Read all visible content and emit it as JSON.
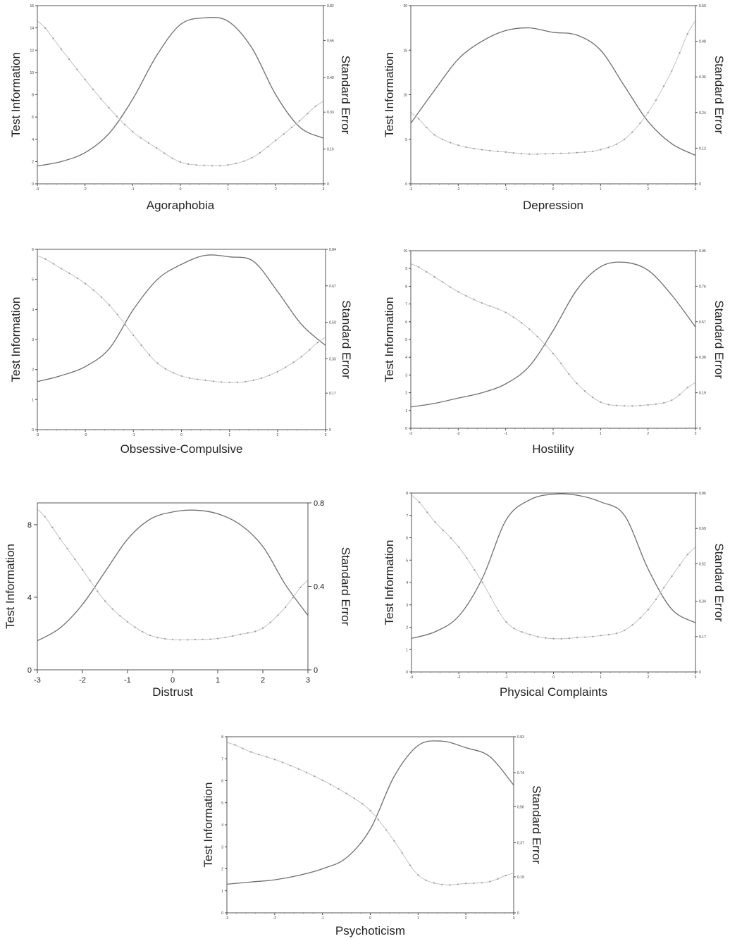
{
  "figure": {
    "left_axis_title": "Test Information",
    "right_axis_title": "Standard Error"
  },
  "chart_data": [
    {
      "type": "line",
      "title": "Agoraphobia",
      "xlabel": "Agoraphobia",
      "ylabel": "Test Information",
      "y2label": "Standard Error",
      "xlim": [
        -3,
        3
      ],
      "ylim": [
        0,
        16
      ],
      "y2lim": [
        0,
        0.82
      ],
      "x_ticks": [
        -3,
        -2,
        -1,
        0,
        1,
        2,
        3
      ],
      "y_ticks": [
        0,
        2,
        4,
        6,
        8,
        10,
        12,
        14,
        16
      ],
      "y2_ticks": [
        0,
        0.16,
        0.33,
        0.49,
        0.66,
        0.82
      ],
      "x_tick_labels": [
        "-3",
        "-2",
        "-1",
        "0",
        "1",
        "2",
        "3"
      ],
      "y_tick_labels": [
        "0",
        "2",
        "4",
        "6",
        "8",
        "10",
        "12",
        "14",
        "16"
      ],
      "y2_tick_labels": [
        "0",
        "0.16",
        "0.33",
        "0.49",
        "0.66",
        "0.82"
      ],
      "series": [
        {
          "axis": "left",
          "style": "solid",
          "x": [
            -3,
            -2.5,
            -2,
            -1.5,
            -1,
            -0.5,
            0,
            0.5,
            1,
            1.5,
            2,
            2.5,
            3
          ],
          "values": [
            1.6,
            2.0,
            2.8,
            4.5,
            7.6,
            11.5,
            14.3,
            14.9,
            14.6,
            12.2,
            8.0,
            5.1,
            4.1
          ]
        },
        {
          "axis": "right",
          "style": "dotted",
          "x": [
            -3,
            -2.5,
            -2,
            -1.5,
            -1,
            -0.5,
            0,
            0.5,
            1,
            1.5,
            2,
            2.5,
            3
          ],
          "values": [
            0.75,
            0.62,
            0.48,
            0.35,
            0.24,
            0.165,
            0.1,
            0.085,
            0.087,
            0.12,
            0.2,
            0.29,
            0.38
          ]
        }
      ]
    },
    {
      "type": "line",
      "title": "Depression",
      "xlabel": "Depression",
      "ylabel": "Test Information",
      "y2label": "Standard Error",
      "xlim": [
        -3,
        3
      ],
      "ylim": [
        0,
        20
      ],
      "y2lim": [
        0,
        0.6
      ],
      "x_ticks": [
        -3,
        -2,
        -1,
        0,
        1,
        2,
        3
      ],
      "y_ticks": [
        0,
        5,
        10,
        15,
        20
      ],
      "y2_ticks": [
        0,
        0.12,
        0.24,
        0.36,
        0.48,
        0.6
      ],
      "x_tick_labels": [
        "-3",
        "-2",
        "-1",
        "0",
        "1",
        "2",
        "3"
      ],
      "y_tick_labels": [
        "0",
        "5",
        "10",
        "15",
        "20"
      ],
      "y2_tick_labels": [
        "0",
        "0.12",
        "0.24",
        "0.36",
        "0.48",
        "0.60"
      ],
      "series": [
        {
          "axis": "left",
          "style": "solid",
          "x": [
            -3,
            -2.5,
            -2,
            -1.5,
            -1,
            -0.5,
            0,
            0.5,
            1,
            1.5,
            2,
            2.5,
            3
          ],
          "values": [
            6.8,
            10.5,
            14.0,
            16.0,
            17.2,
            17.5,
            17.0,
            16.7,
            15.0,
            11.0,
            7.0,
            4.5,
            3.2
          ]
        },
        {
          "axis": "right",
          "style": "dotted",
          "x": [
            -3,
            -2.5,
            -2,
            -1.5,
            -1,
            -0.5,
            0,
            0.5,
            1,
            1.5,
            2,
            2.5,
            3
          ],
          "values": [
            0.24,
            0.165,
            0.13,
            0.115,
            0.107,
            0.1,
            0.102,
            0.105,
            0.115,
            0.15,
            0.24,
            0.38,
            0.55
          ]
        }
      ]
    },
    {
      "type": "line",
      "title": "Obsessive-Compulsive",
      "xlabel": "Obsessive-Compulsive",
      "ylabel": "Test Information",
      "y2label": "Standard Error",
      "xlim": [
        -3,
        3
      ],
      "ylim": [
        0,
        6
      ],
      "y2lim": [
        0,
        0.84
      ],
      "x_ticks": [
        -3,
        -2,
        -1,
        0,
        1,
        2,
        3
      ],
      "y_ticks": [
        0,
        1,
        2,
        3,
        4,
        5,
        6
      ],
      "y2_ticks": [
        0,
        0.17,
        0.33,
        0.5,
        0.67,
        0.84
      ],
      "x_tick_labels": [
        "-3",
        "-2",
        "-1",
        "0",
        "1",
        "2",
        "3"
      ],
      "y_tick_labels": [
        "0",
        "1",
        "2",
        "3",
        "4",
        "5",
        "6"
      ],
      "y2_tick_labels": [
        "0",
        "0.17",
        "0.33",
        "0.50",
        "0.67",
        "0.84"
      ],
      "series": [
        {
          "axis": "left",
          "style": "solid",
          "x": [
            -3,
            -2.5,
            -2,
            -1.5,
            -1,
            -0.5,
            0,
            0.5,
            1,
            1.5,
            2,
            2.5,
            3
          ],
          "values": [
            1.6,
            1.8,
            2.1,
            2.7,
            4.0,
            5.0,
            5.5,
            5.8,
            5.75,
            5.6,
            4.6,
            3.5,
            2.8
          ]
        },
        {
          "axis": "right",
          "style": "dotted",
          "x": [
            -3,
            -2.5,
            -2,
            -1.5,
            -1,
            -0.5,
            0,
            0.5,
            1,
            1.5,
            2,
            2.5,
            3
          ],
          "values": [
            0.81,
            0.75,
            0.68,
            0.58,
            0.44,
            0.31,
            0.25,
            0.23,
            0.22,
            0.23,
            0.27,
            0.34,
            0.43
          ]
        }
      ]
    },
    {
      "type": "line",
      "title": "Hostility",
      "xlabel": "Hostility",
      "ylabel": "Test Information",
      "y2label": "Standard Error",
      "xlim": [
        -3,
        3
      ],
      "ylim": [
        0,
        10
      ],
      "y2lim": [
        0,
        0.95
      ],
      "x_ticks": [
        -3,
        -2,
        -1,
        0,
        1,
        2,
        3
      ],
      "y_ticks": [
        0,
        1,
        2,
        3,
        4,
        5,
        6,
        7,
        8,
        9,
        10
      ],
      "y2_ticks": [
        0,
        0.19,
        0.38,
        0.57,
        0.76,
        0.95
      ],
      "x_tick_labels": [
        "-3",
        "-2",
        "-1",
        "0",
        "1",
        "2",
        "3"
      ],
      "y_tick_labels": [
        "0",
        "1",
        "2",
        "3",
        "4",
        "5",
        "6",
        "7",
        "8",
        "9",
        "10"
      ],
      "y2_tick_labels": [
        "0",
        "0.19",
        "0.38",
        "0.57",
        "0.76",
        "0.95"
      ],
      "series": [
        {
          "axis": "left",
          "style": "solid",
          "x": [
            -3,
            -2.5,
            -2,
            -1.5,
            -1,
            -0.5,
            0,
            0.5,
            1,
            1.5,
            2,
            2.5,
            3
          ],
          "values": [
            1.2,
            1.4,
            1.7,
            2.0,
            2.5,
            3.5,
            5.5,
            7.8,
            9.1,
            9.35,
            8.9,
            7.5,
            5.7
          ]
        },
        {
          "axis": "right",
          "style": "dotted",
          "x": [
            -3,
            -2.5,
            -2,
            -1.5,
            -1,
            -0.5,
            0,
            0.5,
            1,
            1.5,
            2,
            2.5,
            3
          ],
          "values": [
            0.88,
            0.81,
            0.73,
            0.67,
            0.62,
            0.53,
            0.4,
            0.24,
            0.14,
            0.12,
            0.125,
            0.15,
            0.245
          ]
        }
      ]
    },
    {
      "type": "line",
      "title": "Distrust",
      "xlabel": "Distrust",
      "ylabel": "Test Information",
      "y2label": "Standard Error",
      "xlim": [
        -3,
        3
      ],
      "ylim": [
        0,
        9.2
      ],
      "y2lim": [
        0,
        0.8
      ],
      "x_ticks": [
        -3,
        -2,
        -1,
        0,
        1,
        2,
        3
      ],
      "y_ticks": [
        0,
        4,
        8
      ],
      "y2_ticks": [
        0,
        0.4,
        0.8
      ],
      "x_tick_labels": [
        "-3",
        "-2",
        "-1",
        "0",
        "1",
        "2",
        "3"
      ],
      "y_tick_labels": [
        "0",
        "4",
        "8"
      ],
      "y2_tick_labels": [
        "0",
        "0.4",
        "0.8"
      ],
      "series": [
        {
          "axis": "left",
          "style": "solid",
          "x": [
            -3,
            -2.5,
            -2,
            -1.5,
            -1,
            -0.5,
            0,
            0.5,
            1,
            1.5,
            2,
            2.5,
            3
          ],
          "values": [
            1.6,
            2.3,
            3.6,
            5.4,
            7.2,
            8.3,
            8.7,
            8.8,
            8.6,
            8.0,
            6.8,
            4.7,
            3.0
          ]
        },
        {
          "axis": "right",
          "style": "dotted",
          "x": [
            -3,
            -2.5,
            -2,
            -1.5,
            -1,
            -0.5,
            0,
            0.5,
            1,
            1.5,
            2,
            2.5,
            3
          ],
          "values": [
            0.77,
            0.63,
            0.48,
            0.33,
            0.23,
            0.165,
            0.145,
            0.145,
            0.15,
            0.17,
            0.2,
            0.3,
            0.43
          ]
        }
      ]
    },
    {
      "type": "line",
      "title": "Physical Complaints",
      "xlabel": "Physical Complaints",
      "ylabel": "Test Information",
      "y2label": "Standard Error",
      "xlim": [
        -3,
        3
      ],
      "ylim": [
        0,
        8
      ],
      "y2lim": [
        0,
        0.86
      ],
      "x_ticks": [
        -3,
        -2,
        -1,
        0,
        1,
        2,
        3
      ],
      "y_ticks": [
        0,
        1,
        2,
        3,
        4,
        5,
        6,
        7,
        8
      ],
      "y2_ticks": [
        0,
        0.17,
        0.34,
        0.52,
        0.69,
        0.86
      ],
      "x_tick_labels": [
        "-3",
        "-2",
        "-1",
        "0",
        "1",
        "2",
        "3"
      ],
      "y_tick_labels": [
        "0",
        "1",
        "2",
        "3",
        "4",
        "5",
        "6",
        "7",
        "8"
      ],
      "y2_tick_labels": [
        "0",
        "0.17",
        "0.34",
        "0.52",
        "0.69",
        "0.86"
      ],
      "series": [
        {
          "axis": "left",
          "style": "solid",
          "x": [
            -3,
            -2.5,
            -2,
            -1.5,
            -1,
            -0.5,
            0,
            0.5,
            1,
            1.5,
            2,
            2.5,
            3
          ],
          "values": [
            1.5,
            1.8,
            2.5,
            4.2,
            6.8,
            7.7,
            7.95,
            7.9,
            7.6,
            7.0,
            4.6,
            2.8,
            2.2
          ]
        },
        {
          "axis": "right",
          "style": "dotted",
          "x": [
            -3,
            -2.5,
            -2,
            -1.5,
            -1,
            -0.5,
            0,
            0.5,
            1,
            1.5,
            2,
            2.5,
            3
          ],
          "values": [
            0.85,
            0.72,
            0.6,
            0.43,
            0.24,
            0.18,
            0.16,
            0.165,
            0.175,
            0.2,
            0.3,
            0.46,
            0.6
          ]
        }
      ]
    },
    {
      "type": "line",
      "title": "Psychoticism",
      "xlabel": "Psychoticism",
      "ylabel": "Test Information",
      "y2label": "Standard Error",
      "xlim": [
        -3,
        3
      ],
      "ylim": [
        0,
        8
      ],
      "y2lim": [
        0,
        0.93
      ],
      "x_ticks": [
        -3,
        -2,
        -1,
        0,
        1,
        2,
        3
      ],
      "y_ticks": [
        0,
        1,
        2,
        3,
        4,
        5,
        6,
        7,
        8
      ],
      "y2_ticks": [
        0,
        0.19,
        0.37,
        0.56,
        0.74,
        0.93
      ],
      "x_tick_labels": [
        "-3",
        "-2",
        "-1",
        "0",
        "1",
        "2",
        "3"
      ],
      "y_tick_labels": [
        "0",
        "1",
        "2",
        "3",
        "4",
        "5",
        "6",
        "7",
        "8"
      ],
      "y2_tick_labels": [
        "0",
        "0.19",
        "0.37",
        "0.56",
        "0.74",
        "0.93"
      ],
      "series": [
        {
          "axis": "left",
          "style": "solid",
          "x": [
            -3,
            -2.5,
            -2,
            -1.5,
            -1,
            -0.5,
            0,
            0.5,
            1,
            1.5,
            2,
            2.5,
            3
          ],
          "values": [
            1.3,
            1.4,
            1.5,
            1.7,
            2.0,
            2.5,
            3.8,
            6.2,
            7.6,
            7.8,
            7.5,
            7.1,
            5.8
          ]
        },
        {
          "axis": "right",
          "style": "dotted",
          "x": [
            -3,
            -2.5,
            -2,
            -1.5,
            -1,
            -0.5,
            0,
            0.5,
            1,
            1.5,
            2,
            2.5,
            3
          ],
          "values": [
            0.9,
            0.85,
            0.81,
            0.76,
            0.7,
            0.63,
            0.54,
            0.38,
            0.2,
            0.15,
            0.155,
            0.165,
            0.21
          ]
        }
      ]
    }
  ]
}
